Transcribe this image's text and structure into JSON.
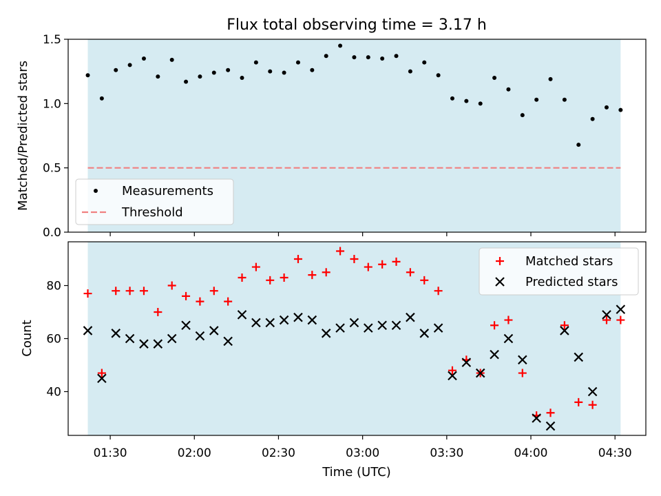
{
  "chart_data": [
    {
      "type": "scatter",
      "title": "Flux total observing time = 3.17 h",
      "ylabel": "Matched/Predicted stars",
      "ylim": [
        0,
        1.5
      ],
      "yticks": [
        0.0,
        0.5,
        1.0,
        1.5
      ],
      "ytick_labels": [
        "0.0",
        "0.5",
        "1.0",
        "1.5"
      ],
      "shaded_region": {
        "color": "#add8e6",
        "alpha": 0.5
      },
      "threshold": {
        "name": "Threshold",
        "value": 0.5,
        "color": "#f08080",
        "style": "dashed"
      },
      "legend_placement": "lower-left",
      "series": [
        {
          "name": "Measurements",
          "color": "#000000",
          "marker": "dot",
          "x": [
            "01:22",
            "01:27",
            "01:32",
            "01:37",
            "01:42",
            "01:47",
            "01:52",
            "01:57",
            "02:02",
            "02:07",
            "02:12",
            "02:17",
            "02:22",
            "02:27",
            "02:32",
            "02:37",
            "02:42",
            "02:47",
            "02:52",
            "02:57",
            "03:02",
            "03:07",
            "03:12",
            "03:17",
            "03:22",
            "03:27",
            "03:32",
            "03:37",
            "03:42",
            "03:47",
            "03:52",
            "03:57",
            "04:02",
            "04:07",
            "04:12",
            "04:17",
            "04:22",
            "04:27",
            "04:32"
          ],
          "y": [
            1.22,
            1.04,
            1.26,
            1.3,
            1.35,
            1.21,
            1.34,
            1.17,
            1.21,
            1.24,
            1.26,
            1.2,
            1.32,
            1.25,
            1.24,
            1.32,
            1.26,
            1.37,
            1.45,
            1.36,
            1.36,
            1.35,
            1.37,
            1.25,
            1.32,
            1.22,
            1.04,
            1.02,
            1.0,
            1.2,
            1.11,
            0.91,
            1.03,
            1.19,
            1.03,
            0.68,
            0.88,
            0.97,
            0.95
          ]
        }
      ]
    },
    {
      "type": "scatter",
      "xlabel": "Time (UTC)",
      "ylabel": "Count",
      "ylim": [
        23.5,
        96.5
      ],
      "yticks": [
        40,
        60,
        80
      ],
      "ytick_labels": [
        "40",
        "60",
        "80"
      ],
      "xlim": [
        "01:15",
        "04:41"
      ],
      "xticks": [
        "01:30",
        "02:00",
        "02:30",
        "03:00",
        "03:30",
        "04:00",
        "04:30"
      ],
      "xtick_labels": [
        "01:30",
        "02:00",
        "02:30",
        "03:00",
        "03:30",
        "04:00",
        "04:30"
      ],
      "shaded_region": {
        "color": "#add8e6",
        "alpha": 0.5
      },
      "legend_placement": "upper-right",
      "series": [
        {
          "name": "Matched stars",
          "color": "#ff0000",
          "marker": "plus",
          "x": [
            "01:22",
            "01:27",
            "01:32",
            "01:37",
            "01:42",
            "01:47",
            "01:52",
            "01:57",
            "02:02",
            "02:07",
            "02:12",
            "02:17",
            "02:22",
            "02:27",
            "02:32",
            "02:37",
            "02:42",
            "02:47",
            "02:52",
            "02:57",
            "03:02",
            "03:07",
            "03:12",
            "03:17",
            "03:22",
            "03:27",
            "03:32",
            "03:37",
            "03:42",
            "03:47",
            "03:52",
            "03:57",
            "04:02",
            "04:07",
            "04:12",
            "04:17",
            "04:22",
            "04:27",
            "04:32"
          ],
          "y": [
            77,
            47,
            78,
            78,
            78,
            70,
            80,
            76,
            74,
            78,
            74,
            83,
            87,
            82,
            83,
            90,
            84,
            85,
            93,
            90,
            87,
            88,
            89,
            85,
            82,
            78,
            48,
            52,
            47,
            65,
            67,
            47,
            31,
            32,
            65,
            36,
            35,
            67,
            67
          ]
        },
        {
          "name": "Predicted stars",
          "color": "#000000",
          "marker": "x",
          "x": [
            "01:22",
            "01:27",
            "01:32",
            "01:37",
            "01:42",
            "01:47",
            "01:52",
            "01:57",
            "02:02",
            "02:07",
            "02:12",
            "02:17",
            "02:22",
            "02:27",
            "02:32",
            "02:37",
            "02:42",
            "02:47",
            "02:52",
            "02:57",
            "03:02",
            "03:07",
            "03:12",
            "03:17",
            "03:22",
            "03:27",
            "03:32",
            "03:37",
            "03:42",
            "03:47",
            "03:52",
            "03:57",
            "04:02",
            "04:07",
            "04:12",
            "04:17",
            "04:22",
            "04:27",
            "04:32"
          ],
          "y": [
            63,
            45,
            62,
            60,
            58,
            58,
            60,
            65,
            61,
            63,
            59,
            69,
            66,
            66,
            67,
            68,
            67,
            62,
            64,
            66,
            64,
            65,
            65,
            68,
            62,
            64,
            46,
            51,
            47,
            54,
            60,
            52,
            30,
            27,
            63,
            53,
            40,
            69,
            71
          ]
        }
      ]
    }
  ]
}
